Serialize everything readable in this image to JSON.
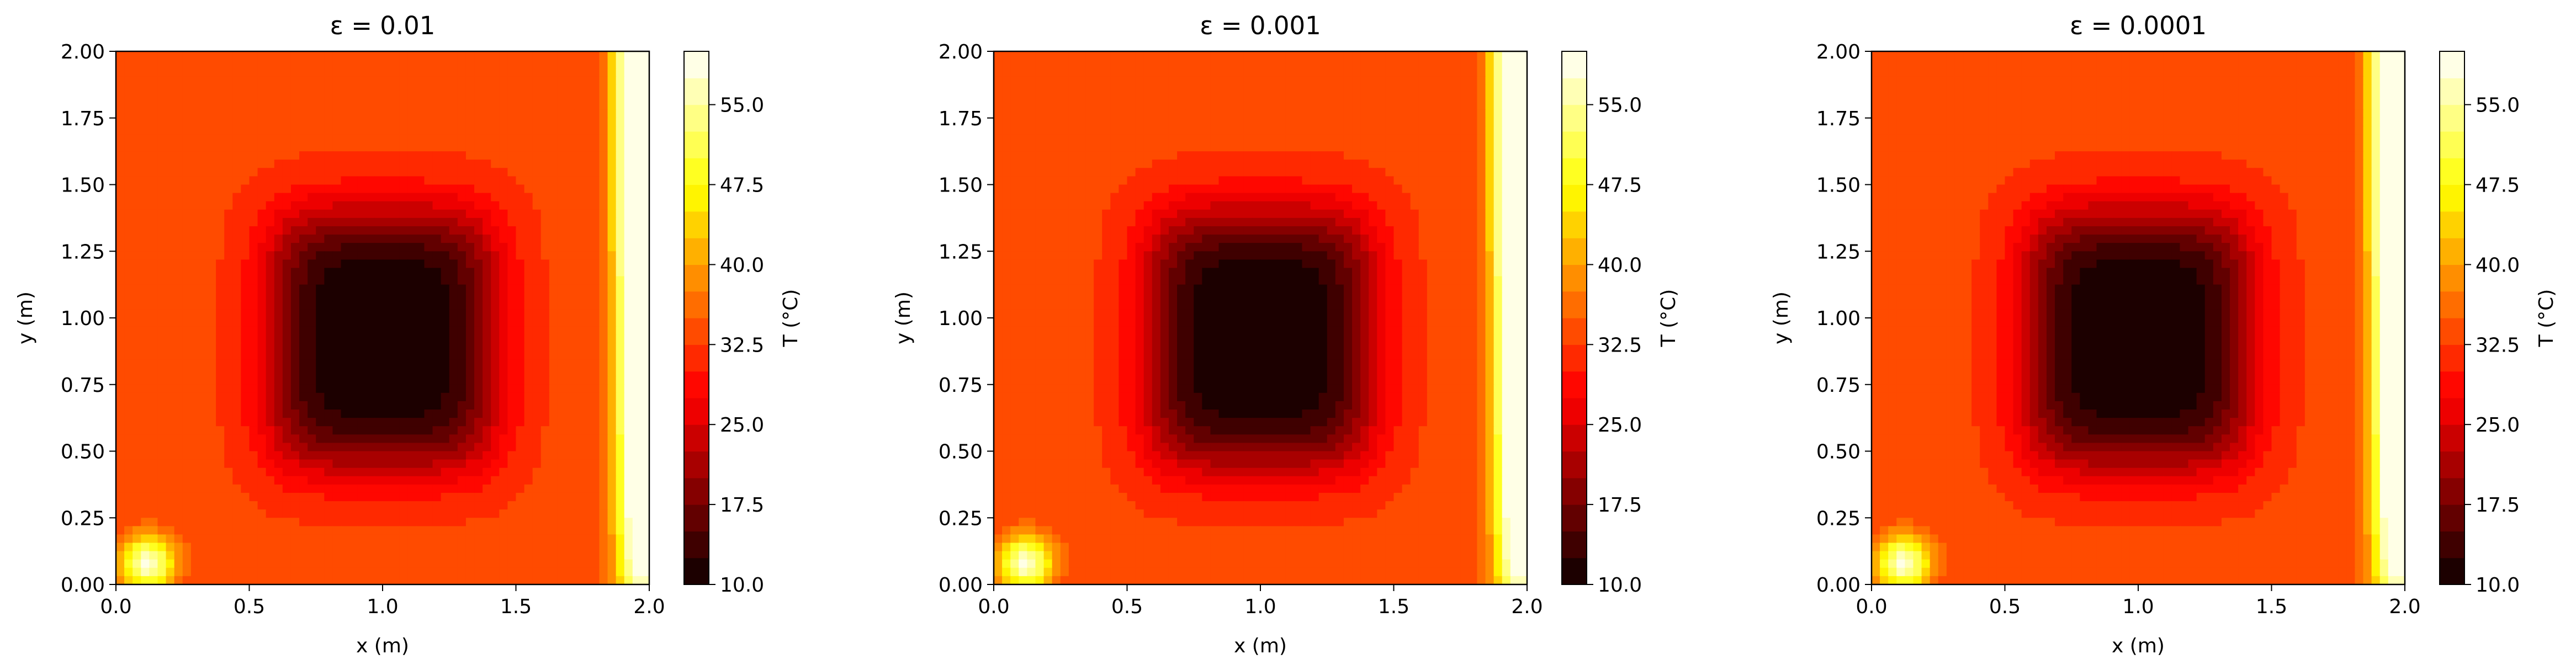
{
  "chart_data": [
    {
      "type": "heatmap",
      "title": "ε = 0.01",
      "xlabel": "x (m)",
      "ylabel": "y (m)",
      "xlim": [
        0.0,
        2.0
      ],
      "ylim": [
        0.0,
        2.0
      ],
      "xticks": [
        "0.0",
        "0.5",
        "1.0",
        "1.5",
        "2.0"
      ],
      "yticks": [
        "0.00",
        "0.25",
        "0.50",
        "0.75",
        "1.00",
        "1.25",
        "1.50",
        "1.75",
        "2.00"
      ],
      "colorbar": {
        "label": "T (°C)",
        "range": [
          10.0,
          60.0
        ],
        "ticks": [
          "10.0",
          "17.5",
          "25.0",
          "32.5",
          "40.0",
          "47.5",
          "55.0"
        ],
        "colormap": "hot",
        "levels": 20
      }
    },
    {
      "type": "heatmap",
      "title": "ε = 0.001",
      "xlabel": "x (m)",
      "ylabel": "y (m)",
      "xlim": [
        0.0,
        2.0
      ],
      "ylim": [
        0.0,
        2.0
      ],
      "xticks": [
        "0.0",
        "0.5",
        "1.0",
        "1.5",
        "2.0"
      ],
      "yticks": [
        "0.00",
        "0.25",
        "0.50",
        "0.75",
        "1.00",
        "1.25",
        "1.50",
        "1.75",
        "2.00"
      ],
      "colorbar": {
        "label": "T (°C)",
        "range": [
          10.0,
          60.0
        ],
        "ticks": [
          "10.0",
          "17.5",
          "25.0",
          "32.5",
          "40.0",
          "47.5",
          "55.0"
        ],
        "colormap": "hot",
        "levels": 20
      }
    },
    {
      "type": "heatmap",
      "title": "ε = 0.0001",
      "xlabel": "x (m)",
      "ylabel": "y (m)",
      "xlim": [
        0.0,
        2.0
      ],
      "ylim": [
        0.0,
        2.0
      ],
      "xticks": [
        "0.0",
        "0.5",
        "1.0",
        "1.5",
        "2.0"
      ],
      "yticks": [
        "0.00",
        "0.25",
        "0.50",
        "0.75",
        "1.00",
        "1.25",
        "1.50",
        "1.75",
        "2.00"
      ],
      "colorbar": {
        "label": "T (°C)",
        "range": [
          10.0,
          60.0
        ],
        "ticks": [
          "10.0",
          "17.5",
          "25.0",
          "32.5",
          "40.0",
          "47.5",
          "55.0"
        ],
        "colormap": "hot",
        "levels": 20
      }
    }
  ]
}
